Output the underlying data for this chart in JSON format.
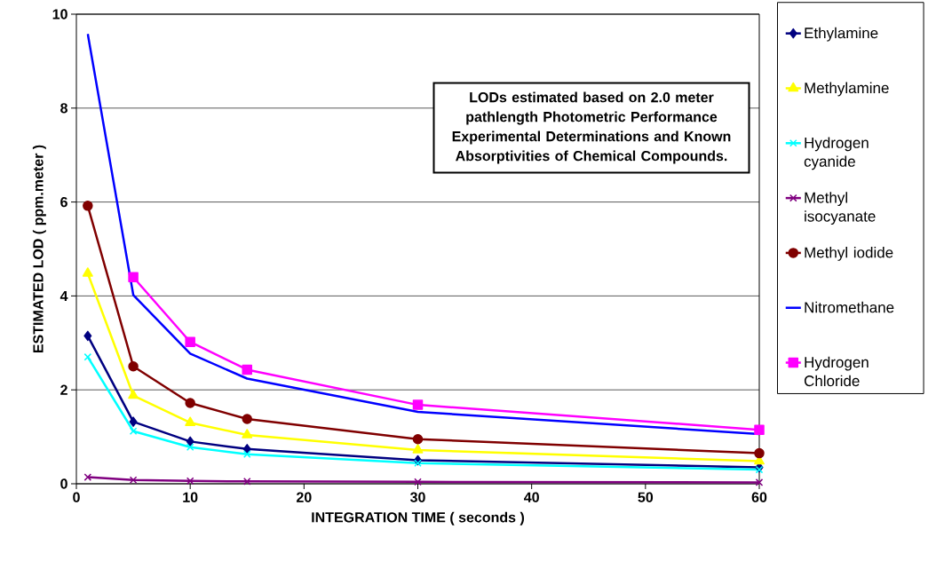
{
  "chart_data": {
    "type": "line",
    "xlabel": "INTEGRATION TIME ( seconds )",
    "ylabel": "ESTIMATED LOD ( ppm.meter )",
    "x": [
      1,
      5,
      10,
      15,
      30,
      60
    ],
    "xlim": [
      0,
      60
    ],
    "xticks": [
      0,
      10,
      20,
      30,
      40,
      50,
      60
    ],
    "ylim": [
      0,
      10
    ],
    "yticks": [
      0,
      2,
      4,
      6,
      8,
      10
    ],
    "grid": "y",
    "legend": "right",
    "annotations": [
      "LODs estimated based on 2.0 meter pathlength Photometric Performance Experimental Determinations and Known Absorptivities of Chemical Compounds."
    ],
    "series": [
      {
        "name": "Ethylamine",
        "color": "#000080",
        "marker": "diamond",
        "values": [
          3.15,
          1.32,
          0.9,
          0.74,
          0.5,
          0.35
        ]
      },
      {
        "name": "Methylamine",
        "color": "#ffff00",
        "marker": "triangle",
        "values": [
          4.48,
          1.88,
          1.3,
          1.04,
          0.72,
          0.48
        ]
      },
      {
        "name": "Hydrogen cyanide",
        "color": "#00ffff",
        "marker": "cross",
        "values": [
          2.7,
          1.12,
          0.78,
          0.63,
          0.44,
          0.3
        ]
      },
      {
        "name": "Methyl isocyanate",
        "color": "#800080",
        "marker": "cross",
        "values": [
          0.14,
          0.08,
          0.06,
          0.05,
          0.04,
          0.03
        ]
      },
      {
        "name": "Methyl iodide",
        "color": "#800000",
        "marker": "circle",
        "values": [
          5.92,
          2.5,
          1.72,
          1.38,
          0.95,
          0.65
        ]
      },
      {
        "name": "Nitromethane",
        "color": "#0000ff",
        "marker": "none",
        "values": [
          9.58,
          4.02,
          2.77,
          2.24,
          1.53,
          1.06
        ]
      },
      {
        "name": "Hydrogen Chloride",
        "color": "#ff00ff",
        "marker": "square",
        "values": [
          null,
          4.4,
          3.02,
          2.43,
          1.68,
          1.15
        ]
      }
    ]
  }
}
